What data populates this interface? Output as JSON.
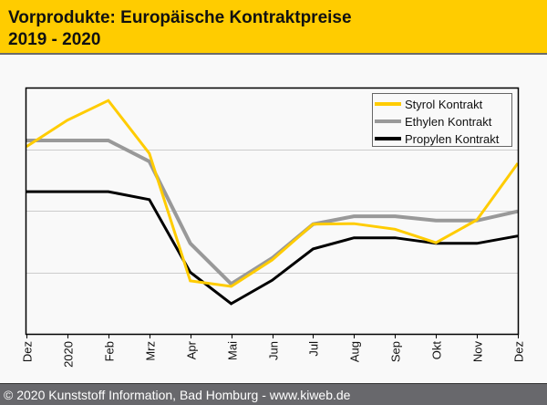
{
  "header": {
    "title_line1": "Vorprodukte: Europäische Kontraktpreise",
    "title_line2": "2019 - 2020"
  },
  "footer": {
    "text": "© 2020 Kunststoff Information, Bad Homburg - www.kiweb.de"
  },
  "colors": {
    "header_bg": "#ffcc00",
    "footer_bg": "#68686c",
    "styrol": "#ffcc00",
    "ethylen": "#999999",
    "propylen": "#000000",
    "gridline": "#cccccc"
  },
  "chart_data": {
    "type": "line",
    "title": "Vorprodukte: Europäische Kontraktpreise 2019 - 2020",
    "xlabel": "",
    "ylabel": "",
    "x": [
      "Dez",
      "2020",
      "Feb",
      "Mrz",
      "Apr",
      "Mai",
      "Jun",
      "Jul",
      "Aug",
      "Sep",
      "Okt",
      "Nov",
      "Dez"
    ],
    "ylim": [
      0,
      4
    ],
    "y_unit_note": "relative (no y-axis labels shown); gridlines at 1, 2, 3",
    "gridlines": [
      1,
      2,
      3
    ],
    "grid": true,
    "legend_position": "top-right",
    "series": [
      {
        "name": "Styrol Kontrakt",
        "color": "#ffcc00",
        "values": [
          3.04,
          3.47,
          3.79,
          2.93,
          0.86,
          0.77,
          1.2,
          1.78,
          1.79,
          1.7,
          1.48,
          1.85,
          2.77
        ]
      },
      {
        "name": "Ethylen Kontrakt",
        "color": "#999999",
        "values": [
          3.14,
          3.14,
          3.14,
          2.8,
          1.47,
          0.81,
          1.23,
          1.78,
          1.91,
          1.91,
          1.84,
          1.84,
          1.99
        ]
      },
      {
        "name": "Propylen Kontrakt",
        "color": "#000000",
        "values": [
          2.31,
          2.31,
          2.31,
          2.18,
          1.0,
          0.49,
          0.87,
          1.38,
          1.56,
          1.56,
          1.47,
          1.47,
          1.59
        ]
      }
    ]
  }
}
